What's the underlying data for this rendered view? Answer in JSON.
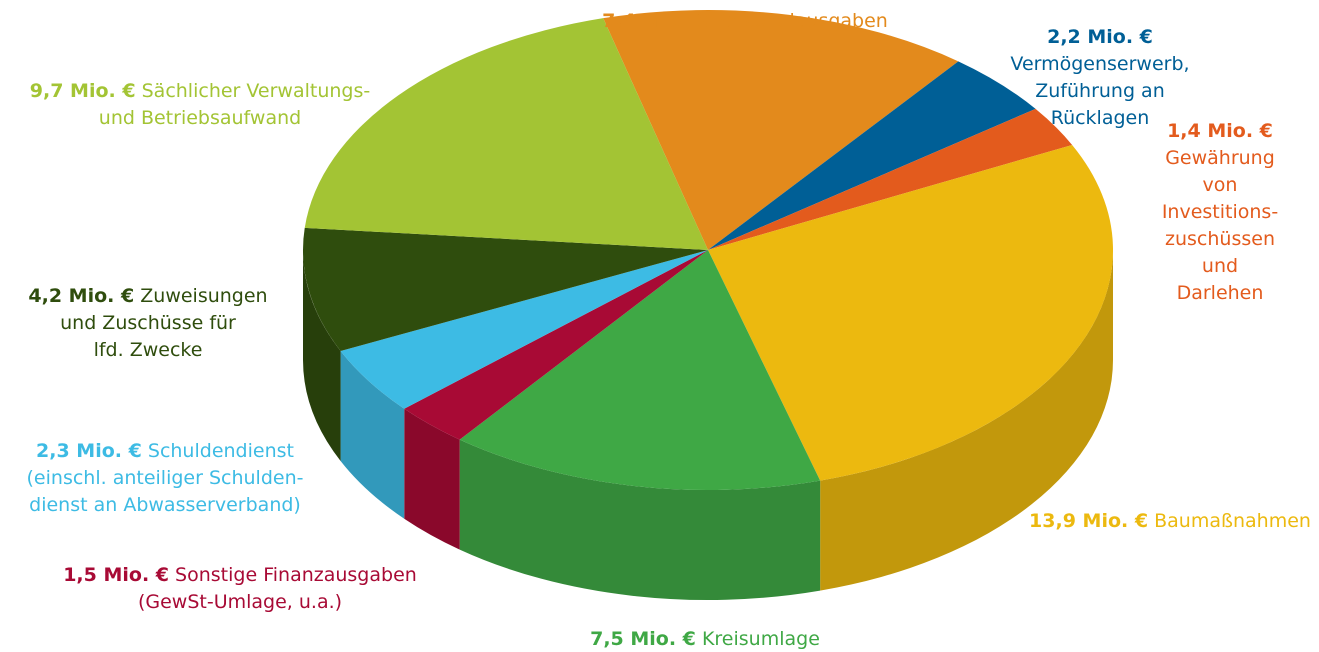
{
  "chart_data": {
    "type": "pie",
    "categories": [
      "Personalausgaben",
      "Vermögenserwerb,\nZuführung an Rücklagen",
      "Gewährung\nvon\nInvestitions-\nzuschüssen\nund Darlehen",
      "Baumaßnahmen",
      "Kreisumlage",
      "Sonstige Finanzausgaben\n(GewSt-Umlage, u.a.)",
      "Schuldendienst\n(einschl. anteiliger Schulden-\ndienst an Abwasserverband)",
      "Zuweisungen\nund Zuschüsse für\nlfd. Zwecke",
      "Sächlicher Verwaltungs-\nund Betriebsaufwand"
    ],
    "values": [
      7.4,
      2.2,
      1.4,
      13.9,
      7.5,
      1.5,
      2.3,
      4.2,
      9.7
    ],
    "value_labels": [
      "7,4 Mio. €",
      "2,2 Mio. €",
      "1,4 Mio. €",
      "13,9 Mio. €",
      "7,5 Mio. €",
      "1,5 Mio. €",
      "2,3 Mio. €",
      "4,2 Mio. €",
      "9,7 Mio. €"
    ],
    "colors": [
      "#e38a1c",
      "#005f96",
      "#e35b1d",
      "#ecb90f",
      "#3fa845",
      "#a80a35",
      "#3dbbe4",
      "#2f4d0d",
      "#a3c434"
    ]
  }
}
